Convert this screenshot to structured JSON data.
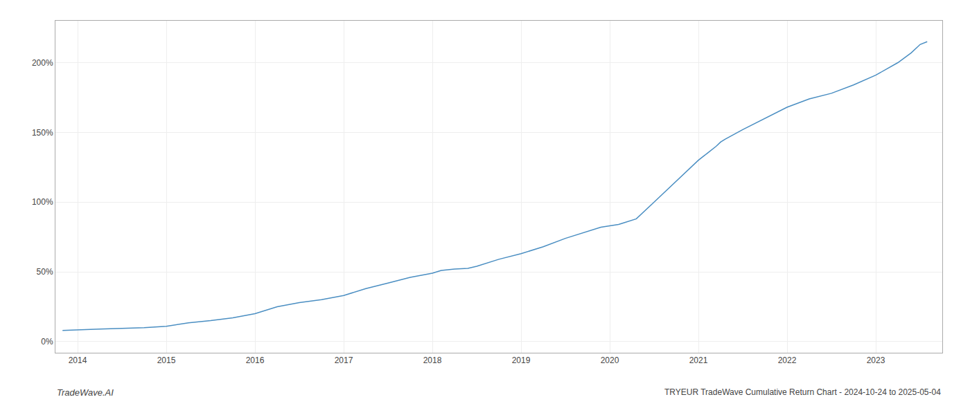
{
  "chart_data": {
    "type": "line",
    "title": "TRYEUR TradeWave Cumulative Return Chart - 2024-10-24 to 2025-05-04",
    "annotations": [
      {
        "text": "TradeWave.AI"
      }
    ],
    "x": [
      2013.83,
      2014.0,
      2014.25,
      2014.5,
      2014.75,
      2015.0,
      2015.1,
      2015.25,
      2015.5,
      2015.75,
      2016.0,
      2016.25,
      2016.5,
      2016.75,
      2017.0,
      2017.25,
      2017.5,
      2017.75,
      2018.0,
      2018.1,
      2018.25,
      2018.4,
      2018.5,
      2018.75,
      2019.0,
      2019.25,
      2019.5,
      2019.75,
      2019.9,
      2020.0,
      2020.05,
      2020.1,
      2020.15,
      2020.2,
      2020.25,
      2020.3,
      2020.5,
      2020.75,
      2021.0,
      2021.1,
      2021.2,
      2021.25,
      2021.3,
      2021.5,
      2021.75,
      2022.0,
      2022.25,
      2022.5,
      2022.75,
      2023.0,
      2023.25,
      2023.4,
      2023.5,
      2023.58
    ],
    "values": [
      8,
      8.5,
      9,
      9.5,
      10,
      11,
      12,
      13.5,
      15,
      17,
      20,
      25,
      28,
      30,
      33,
      38,
      42,
      46,
      49,
      51,
      52,
      52.5,
      54,
      59,
      63,
      68,
      74,
      79,
      82,
      83,
      83.5,
      84,
      85,
      86,
      87,
      88,
      100,
      115,
      130,
      135,
      140,
      143,
      145,
      152,
      160,
      168,
      174,
      178,
      184,
      191,
      200,
      207,
      213,
      215
    ],
    "color": "#4a8ec2",
    "xlim": [
      2013.75,
      2023.75
    ],
    "xticks": [
      2014,
      2015,
      2016,
      2017,
      2018,
      2019,
      2020,
      2021,
      2022,
      2023
    ],
    "ylim": [
      -8,
      230
    ],
    "yticks": [
      {
        "value": 0,
        "label": "0%"
      },
      {
        "value": 50,
        "label": "50%"
      },
      {
        "value": 100,
        "label": "100%"
      },
      {
        "value": 150,
        "label": "150%"
      },
      {
        "value": 200,
        "label": "200%"
      }
    ],
    "grid": true
  }
}
